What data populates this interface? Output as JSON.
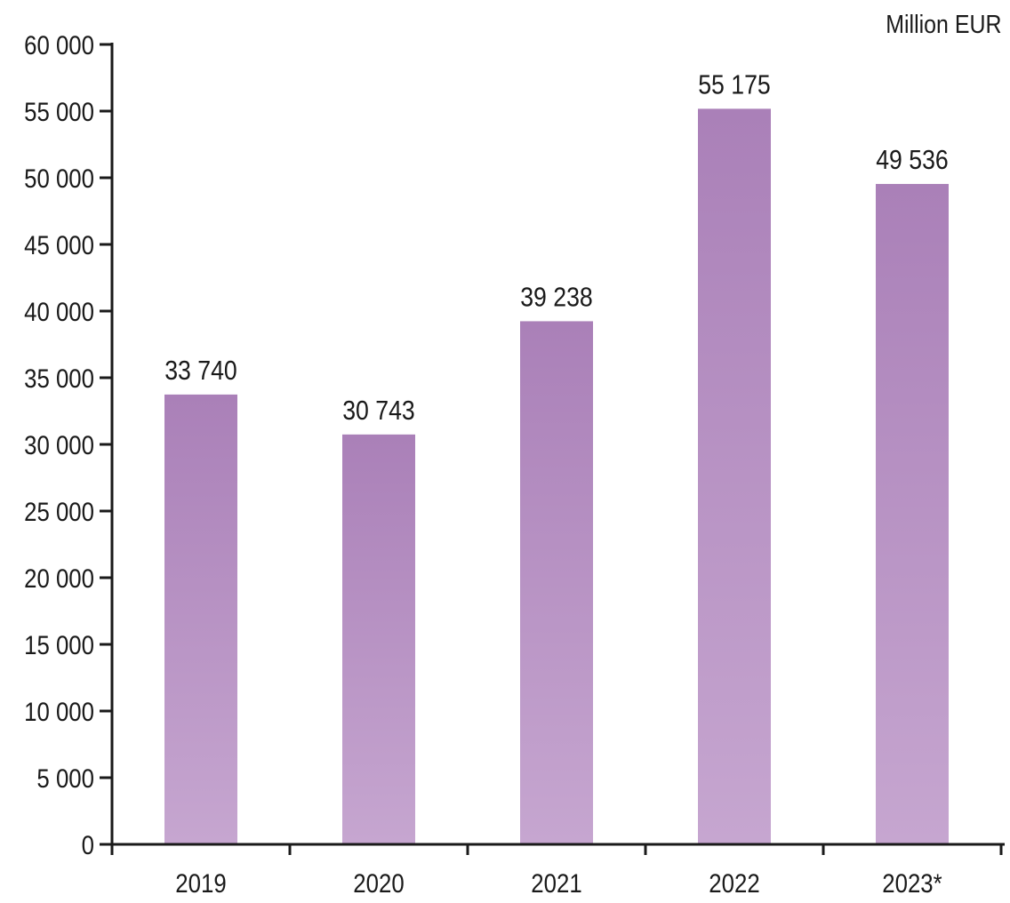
{
  "chart_data": {
    "type": "bar",
    "unit_label": "Million EUR",
    "categories": [
      "2019",
      "2020",
      "2021",
      "2022",
      "2023*"
    ],
    "values": [
      33740,
      30743,
      39238,
      55175,
      49536
    ],
    "value_labels": [
      "33 740",
      "30 743",
      "39 238",
      "55 175",
      "49 536"
    ],
    "ylim": [
      0,
      60000
    ],
    "yticks": [
      0,
      5000,
      10000,
      15000,
      20000,
      25000,
      30000,
      35000,
      40000,
      45000,
      50000,
      55000,
      60000
    ],
    "ytick_labels": [
      "0",
      "5 000",
      "10 000",
      "15 000",
      "20 000",
      "25 000",
      "30 000",
      "35 000",
      "40 000",
      "45 000",
      "50 000",
      "55 000",
      "60 000"
    ],
    "grid": false,
    "legend": "none",
    "bar_color_top": "#aa80b8",
    "bar_color_bottom": "#c6a6d0"
  }
}
